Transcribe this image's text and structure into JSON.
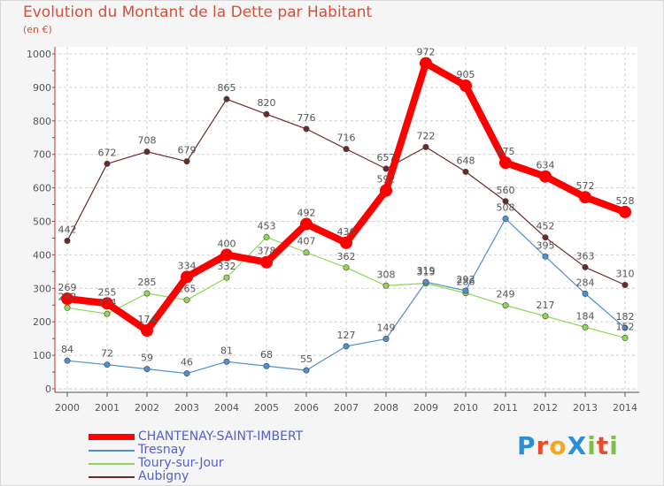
{
  "title": "Evolution du Montant de la Dette par Habitant",
  "subtitle": "(en €)",
  "logo": {
    "text": "ProXiti",
    "letters": [
      {
        "ch": "P",
        "color": "#2a8fd6"
      },
      {
        "ch": "r",
        "color": "#e84c2c"
      },
      {
        "ch": "o",
        "color": "#f2a81d"
      },
      {
        "ch": "X",
        "color": "#2a8fd6"
      },
      {
        "ch": "i",
        "color": "#7cc242"
      },
      {
        "ch": "t",
        "color": "#e84c2c"
      },
      {
        "ch": "i",
        "color": "#7cc242"
      }
    ]
  },
  "chart_data": {
    "type": "line",
    "title": "Evolution du Montant de la Dette par Habitant",
    "ylabel": "(en €)",
    "x": [
      2000,
      2001,
      2002,
      2003,
      2004,
      2005,
      2006,
      2007,
      2008,
      2009,
      2010,
      2011,
      2012,
      2013,
      2014
    ],
    "ylim": [
      0,
      1000
    ],
    "yticks": [
      0,
      100,
      200,
      300,
      400,
      500,
      600,
      700,
      800,
      900,
      1000
    ],
    "grid": "horizontal dashed",
    "legend": "bottom-left",
    "series": [
      {
        "name": "CHANTENAY-SAINT-IMBERT",
        "color": "#ff0000",
        "values": [
          269,
          255,
          174,
          334,
          400,
          378,
          492,
          436,
          592,
          972,
          905,
          675,
          634,
          572,
          528
        ]
      },
      {
        "name": "Tresnay",
        "color": "#4f8fcf",
        "values": [
          84,
          72,
          59,
          46,
          81,
          68,
          55,
          127,
          149,
          319,
          293,
          508,
          395,
          284,
          182
        ]
      },
      {
        "name": "Toury-sur-Jour",
        "color": "#8fd855",
        "values": [
          242,
          224,
          285,
          265,
          332,
          453,
          407,
          362,
          308,
          315,
          286,
          249,
          217,
          184,
          152
        ]
      },
      {
        "name": "Aubigny",
        "color": "#6b2a2a",
        "values": [
          442,
          672,
          708,
          679,
          865,
          820,
          776,
          716,
          657,
          722,
          648,
          560,
          452,
          363,
          310
        ]
      }
    ]
  }
}
